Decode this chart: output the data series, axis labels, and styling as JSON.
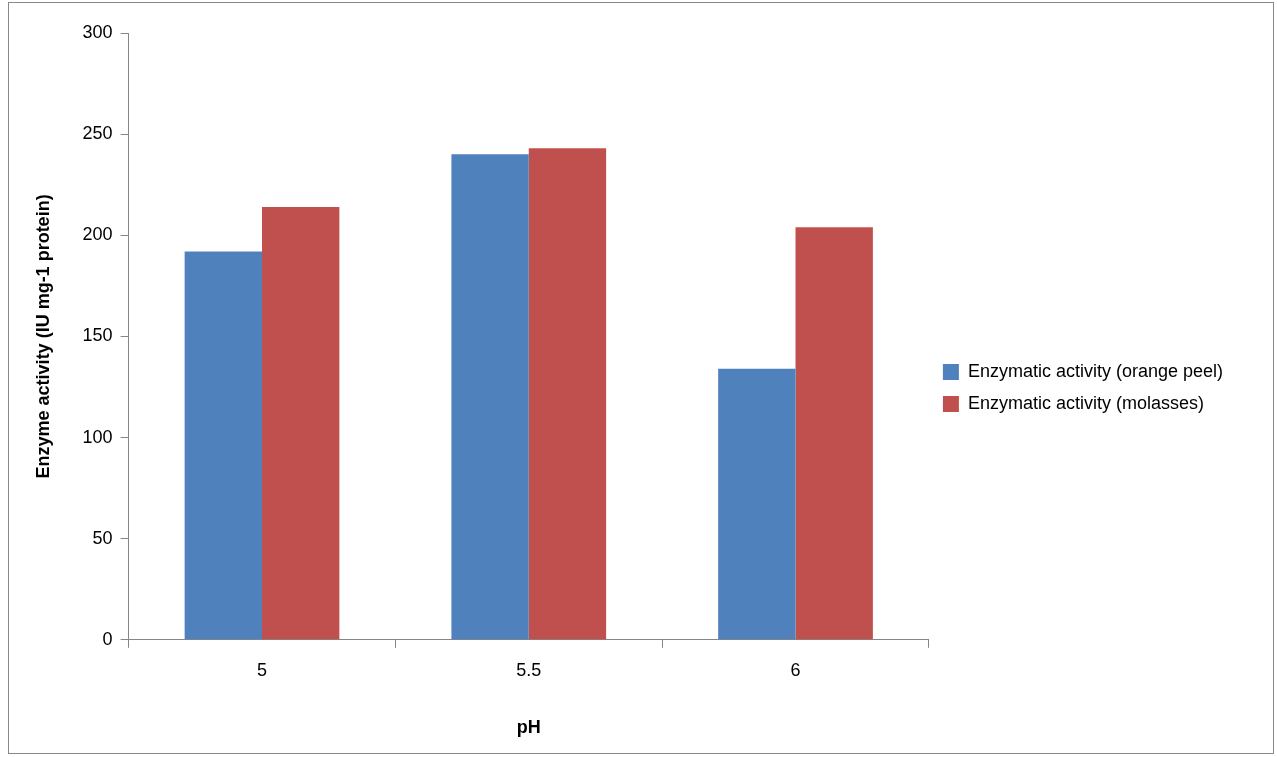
{
  "chart_data": {
    "type": "bar",
    "xlabel": "pH",
    "ylabel": "Enzyme activity (IU mg-1 protein)",
    "categories": [
      "5",
      "5.5",
      "6"
    ],
    "series": [
      {
        "name": "Enzymatic activity (orange peel)",
        "color": "#4f81bd",
        "values": [
          192,
          240,
          134
        ]
      },
      {
        "name": "Enzymatic activity (molasses)",
        "color": "#c0504d",
        "values": [
          214,
          243,
          204
        ]
      }
    ],
    "ylim": [
      0,
      300
    ],
    "yticks": [
      0,
      50,
      100,
      150,
      200,
      250,
      300
    ],
    "grid": false,
    "legend": "right"
  }
}
